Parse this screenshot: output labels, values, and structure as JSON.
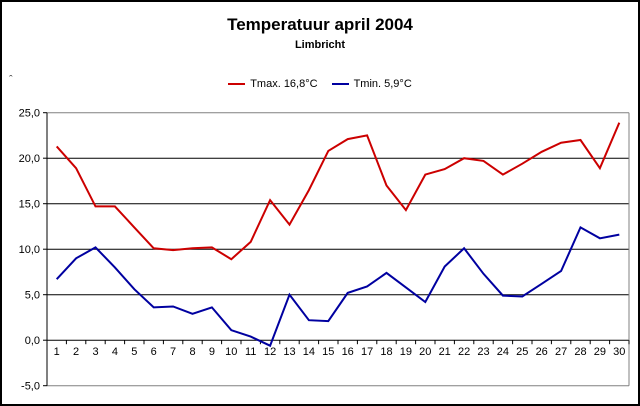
{
  "title": "Temperatuur april 2004",
  "subtitle": "Limbricht",
  "axis_caret": "ˆ",
  "legend": [
    {
      "label": "Tmax. 16,8°C",
      "color": "#CC0000"
    },
    {
      "label": "Tmin. 5,9°C",
      "color": "#0000A0"
    }
  ],
  "colors": {
    "tmax_line": "#CC0000",
    "tmin_line": "#0000A0",
    "gridline": "#000000",
    "boundary_gridline": "#808080",
    "axis": "#000000",
    "background": "#FFFFFF",
    "border": "#000000"
  },
  "chart_data": {
    "type": "line",
    "title": "Temperatuur april 2004",
    "subtitle": "Limbricht",
    "xlabel": "",
    "ylabel": "",
    "x": [
      1,
      2,
      3,
      4,
      5,
      6,
      7,
      8,
      9,
      10,
      11,
      12,
      13,
      14,
      15,
      16,
      17,
      18,
      19,
      20,
      21,
      22,
      23,
      24,
      25,
      26,
      27,
      28,
      29,
      30
    ],
    "x_tick_labels": [
      "1",
      "2",
      "3",
      "4",
      "5",
      "6",
      "7",
      "8",
      "9",
      "10",
      "11",
      "12",
      "13",
      "14",
      "15",
      "16",
      "17",
      "18",
      "19",
      "20",
      "21",
      "22",
      "23",
      "24",
      "25",
      "26",
      "27",
      "28",
      "29",
      "30"
    ],
    "series": [
      {
        "name": "Tmax. 16,8°C",
        "color": "#CC0000",
        "values": [
          21.3,
          18.9,
          14.7,
          14.7,
          12.4,
          10.1,
          9.9,
          10.1,
          10.2,
          8.9,
          10.8,
          15.4,
          12.7,
          16.5,
          20.8,
          22.1,
          22.5,
          17.0,
          14.3,
          18.2,
          18.8,
          20.0,
          19.7,
          18.2,
          19.4,
          20.7,
          21.7,
          22.0,
          18.9,
          23.9
        ]
      },
      {
        "name": "Tmin. 5,9°C",
        "color": "#0000A0",
        "values": [
          6.7,
          9.0,
          10.2,
          8.0,
          5.6,
          3.6,
          3.7,
          2.9,
          3.6,
          1.1,
          0.4,
          -0.6,
          5.0,
          2.2,
          2.1,
          5.2,
          5.9,
          7.4,
          5.8,
          4.2,
          8.1,
          10.1,
          7.3,
          4.9,
          4.8,
          6.2,
          7.6,
          12.4,
          11.2,
          11.6
        ]
      }
    ],
    "ylim": [
      -5,
      25
    ],
    "yticks": [
      {
        "value": 25,
        "label": "25,0",
        "boundary": true
      },
      {
        "value": 20,
        "label": "20,0",
        "boundary": false
      },
      {
        "value": 15,
        "label": "15,0",
        "boundary": false
      },
      {
        "value": 10,
        "label": "10,0",
        "boundary": false
      },
      {
        "value": 5,
        "label": "5,0",
        "boundary": false
      },
      {
        "value": 0,
        "label": "0,0",
        "boundary": false
      },
      {
        "value": -5,
        "label": "-5,0",
        "boundary": true
      }
    ],
    "grid": "horizontal",
    "legend_position": "top-center"
  }
}
